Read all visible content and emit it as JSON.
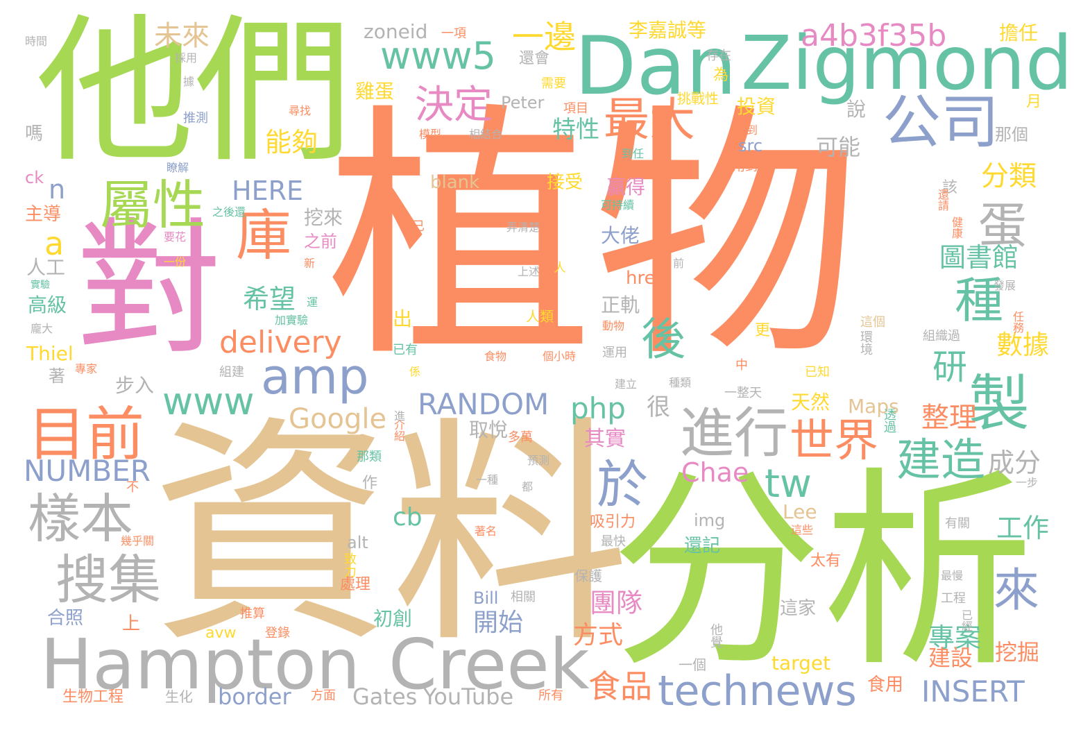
{
  "palette": {
    "orange": "#fc8d62",
    "tan": "#e5c494",
    "green": "#a6d854",
    "teal": "#66c2a5",
    "blue": "#8da0cb",
    "pink": "#e78ac3",
    "gray": "#b3b3b3",
    "yellow": "#ffd92f"
  },
  "words": {
    "w001": "植物",
    "w002": "資料",
    "w003": "分析",
    "w004": "他們",
    "w005": "對",
    "w006": "Dan",
    "w007": "Zigmond",
    "w008": "Hampton",
    "w009": "Creek",
    "w010": "公司",
    "w011": "屬性",
    "w012": "庫",
    "w013": "目前",
    "w014": "樣本",
    "w015": "搜集",
    "w016": "technews",
    "w017": "進行",
    "w018": "製",
    "w019": "種",
    "w020": "蛋",
    "w021": "於",
    "w022": "amp",
    "w023": "www",
    "w024": "www5",
    "w025": "後",
    "w026": "最大",
    "w027": "決定",
    "w028": "世界",
    "w029": "建造",
    "w030": "來",
    "w031": "a4b3f35b",
    "w032": "一邊",
    "w033": "未來",
    "w034": "tw",
    "w035": "delivery",
    "w036": "RANDOM",
    "w037": "NUMBER",
    "w038": "Google",
    "w039": "php",
    "w040": "研",
    "w041": "食品",
    "w042": "INSERT",
    "w043": "border",
    "w044": "Gates",
    "w045": "YouTube",
    "w046": "Chae",
    "w047": "HERE",
    "w048": "能夠",
    "w049": "特性",
    "w050": "分類",
    "w051": "圖書館",
    "w052": "數據",
    "w053": "整理",
    "w054": "成分",
    "w055": "工作",
    "w056": "專案",
    "w057": "團隊",
    "w058": "開始",
    "w059": "方式",
    "w060": "建設",
    "w061": "挖掘",
    "w062": "希望",
    "w063": "a",
    "w064": "n",
    "w065": "cb",
    "w066": "zoneid",
    "w067": "李嘉誠等",
    "w068": "擔任",
    "w069": "雞蛋",
    "w070": "投資",
    "w071": "說",
    "w072": "可能",
    "w073": "挖來",
    "w074": "贏得",
    "w075": "大佬",
    "w076": "正軌",
    "w077": "src",
    "w078": "href",
    "w079": "blank",
    "w080": "接受",
    "w081": "Maps",
    "w082": "Lee",
    "w083": "天然",
    "w084": "其實",
    "w085": "很",
    "w086": "取悅",
    "w087": "高級",
    "w088": "步入",
    "w089": "Thiel",
    "w090": "出",
    "w091": "人工",
    "w092": "主導",
    "w093": "ck",
    "w094": "嗎",
    "w095": "時間",
    "w096": "Peter",
    "w097": "還會",
    "w098": "需要",
    "w099": "項目",
    "w100": "挑戰性",
    "w101": "存在",
    "w102": "為",
    "w103": "月",
    "w104": "那個",
    "w105": "該",
    "w106": "想到",
    "w107": "用到",
    "w108": "還請",
    "w109": "健康",
    "w110": "發展",
    "w111": "任務",
    "w112": "這個",
    "w113": "環境",
    "w114": "組織過",
    "w115": "已知",
    "w116": "中",
    "w117": "一整天",
    "w118": "透過",
    "w119": "一步",
    "w120": "有關",
    "w121": "最慢",
    "w122": "工程",
    "w123": "已經",
    "w124": "太有",
    "w125": "這些",
    "w126": "食用",
    "w127": "target",
    "w128": "這家",
    "w129": "還記",
    "w130": "img",
    "w131": "吸引力",
    "w132": "最快",
    "w133": "保護",
    "w134": "他覺",
    "w135": "一個",
    "w136": "所有",
    "w137": "初創",
    "w138": "Bill",
    "w139": "相關",
    "w140": "登錄",
    "w141": "推算",
    "w142": "方面",
    "w143": "生化",
    "w144": "生物工程",
    "w145": "上",
    "w146": "合照",
    "w147": "avw",
    "w148": "alt",
    "w149": "致力",
    "w150": "處理",
    "w151": "著名",
    "w152": "幾乎關",
    "w153": "作",
    "w154": "那類",
    "w155": "不",
    "w156": "著",
    "w157": "專家",
    "w158": "組建",
    "w159": "已有",
    "w160": "係",
    "w161": "介紹",
    "w162": "進",
    "w163": "一種",
    "w164": "預測",
    "w165": "多萬",
    "w166": "都",
    "w167": "建立",
    "w168": "種類",
    "w169": "運用",
    "w170": "個小時",
    "w171": "食物",
    "w172": "更",
    "w173": "人類",
    "w174": "動物",
    "w175": "上述",
    "w176": "人",
    "w177": "前",
    "w178": "弄清楚",
    "w179": "可持續",
    "w180": "到任",
    "w181": "相結合",
    "w182": "模型",
    "w183": "尋找",
    "w184": "推測",
    "w185": "據",
    "w186": "採用",
    "w187": "瞭解",
    "w188": "之後還",
    "w189": "要花",
    "w190": "一份",
    "w191": "實驗",
    "w192": "龐大",
    "w193": "加實驗",
    "w194": "運",
    "w195": "新",
    "w196": "之前",
    "w197": "已",
    "w198": "一項"
  }
}
